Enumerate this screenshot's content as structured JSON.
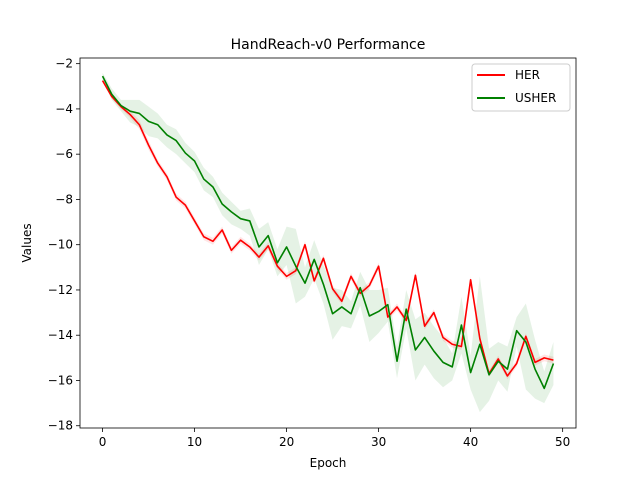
{
  "chart_data": {
    "type": "line",
    "title": "HandReach-v0 Performance",
    "xlabel": "Epoch",
    "ylabel": "Values",
    "xlim": [
      -2.45,
      51.45
    ],
    "ylim": [
      -18.1,
      -1.75
    ],
    "xticks": [
      0,
      10,
      20,
      30,
      40,
      50
    ],
    "yticks": [
      -18,
      -16,
      -14,
      -12,
      -10,
      -8,
      -6,
      -4,
      -2
    ],
    "grid": false,
    "legend_position": "top-right",
    "x": [
      0,
      1,
      2,
      3,
      4,
      5,
      6,
      7,
      8,
      9,
      10,
      11,
      12,
      13,
      14,
      15,
      16,
      17,
      18,
      19,
      20,
      21,
      22,
      23,
      24,
      25,
      26,
      27,
      28,
      29,
      30,
      31,
      32,
      33,
      34,
      35,
      36,
      37,
      38,
      39,
      40,
      41,
      42,
      43,
      44,
      45,
      46,
      47,
      48,
      49
    ],
    "series": [
      {
        "name": "HER",
        "color": "#ff0000",
        "values": [
          -2.75,
          -3.45,
          -3.9,
          -4.25,
          -4.7,
          -5.6,
          -6.4,
          -7.0,
          -7.9,
          -8.25,
          -8.95,
          -9.65,
          -9.85,
          -9.35,
          -10.25,
          -9.8,
          -10.1,
          -10.55,
          -10.05,
          -10.95,
          -11.4,
          -11.15,
          -10.0,
          -11.6,
          -10.6,
          -11.95,
          -12.5,
          -11.4,
          -12.15,
          -11.8,
          -10.95,
          -13.2,
          -12.75,
          -13.35,
          -11.35,
          -13.6,
          -13.0,
          -14.1,
          -14.4,
          -14.5,
          -11.55,
          -14.15,
          -15.7,
          -15.05,
          -15.8,
          -15.25,
          -14.05,
          -15.2,
          -15.0,
          -15.1
        ]
      },
      {
        "name": "USHER",
        "color": "#008000",
        "values": [
          -2.55,
          -3.35,
          -3.85,
          -4.1,
          -4.2,
          -4.55,
          -4.7,
          -5.15,
          -5.4,
          -5.95,
          -6.3,
          -7.1,
          -7.45,
          -8.2,
          -8.55,
          -8.85,
          -8.95,
          -10.1,
          -9.6,
          -10.8,
          -10.1,
          -10.95,
          -11.7,
          -10.65,
          -11.75,
          -13.05,
          -12.75,
          -13.05,
          -11.9,
          -13.15,
          -12.95,
          -12.65,
          -15.15,
          -12.85,
          -14.65,
          -14.1,
          -14.7,
          -15.2,
          -15.4,
          -13.55,
          -15.65,
          -14.4,
          -15.75,
          -15.15,
          -15.5,
          -13.8,
          -14.3,
          -15.5,
          -16.35,
          -15.25
        ]
      }
    ],
    "bands": [
      {
        "series": "HER",
        "color": "#ff0000",
        "lower": [
          -2.8,
          -3.55,
          -4.0,
          -4.4,
          -4.9,
          -5.8,
          -6.55,
          -7.15,
          -8.05,
          -8.4,
          -9.1,
          -9.8,
          -10.0,
          -9.5,
          -10.4,
          -9.95,
          -10.25,
          -10.7,
          -10.2,
          -11.1,
          -11.55,
          -11.3,
          -10.15,
          -11.75,
          -10.75,
          -12.1,
          -12.65,
          -11.55,
          -12.3,
          -11.95,
          -11.1,
          -13.35,
          -12.9,
          -13.5,
          -11.5,
          -13.75,
          -13.15,
          -14.25,
          -14.55,
          -14.65,
          -11.7,
          -14.3,
          -15.85,
          -15.2,
          -15.95,
          -15.4,
          -14.2,
          -15.35,
          -15.15,
          -15.25
        ],
        "upper": [
          -2.7,
          -3.35,
          -3.8,
          -4.1,
          -4.5,
          -5.4,
          -6.25,
          -6.85,
          -7.75,
          -8.1,
          -8.8,
          -9.5,
          -9.7,
          -9.2,
          -10.1,
          -9.65,
          -9.95,
          -10.4,
          -9.9,
          -10.8,
          -11.25,
          -11.0,
          -9.85,
          -11.45,
          -10.45,
          -11.8,
          -12.35,
          -11.25,
          -12.0,
          -11.65,
          -10.8,
          -13.05,
          -12.6,
          -13.2,
          -11.2,
          -13.45,
          -12.85,
          -13.95,
          -14.25,
          -14.35,
          -11.4,
          -14.0,
          -15.55,
          -14.9,
          -15.65,
          -15.1,
          -13.9,
          -15.05,
          -14.85,
          -14.95
        ]
      },
      {
        "series": "USHER",
        "color": "#008000",
        "lower": [
          -2.7,
          -3.6,
          -4.1,
          -4.6,
          -4.8,
          -5.2,
          -5.3,
          -5.7,
          -6.0,
          -6.4,
          -6.8,
          -7.6,
          -7.9,
          -8.7,
          -9.1,
          -9.3,
          -9.6,
          -10.9,
          -10.2,
          -11.4,
          -10.9,
          -12.6,
          -12.3,
          -11.5,
          -12.6,
          -14.2,
          -13.6,
          -13.7,
          -12.7,
          -14.3,
          -13.9,
          -13.4,
          -15.9,
          -13.7,
          -16.0,
          -15.3,
          -15.9,
          -16.3,
          -16.0,
          -14.8,
          -16.4,
          -17.4,
          -16.9,
          -16.0,
          -16.5,
          -14.5,
          -16.4,
          -16.8,
          -17.0,
          -16.2
        ],
        "upper": [
          -2.4,
          -3.1,
          -3.6,
          -3.6,
          -3.6,
          -3.9,
          -4.2,
          -4.7,
          -4.9,
          -5.5,
          -5.9,
          -6.6,
          -7.0,
          -7.7,
          -8.1,
          -8.5,
          -8.4,
          -9.3,
          -9.0,
          -10.2,
          -9.2,
          -9.3,
          -11.0,
          -9.8,
          -10.9,
          -11.9,
          -12.0,
          -12.5,
          -11.2,
          -12.0,
          -12.0,
          -11.9,
          -14.5,
          -12.0,
          -13.3,
          -13.0,
          -13.6,
          -14.1,
          -14.8,
          -12.3,
          -14.9,
          -11.4,
          -14.6,
          -14.3,
          -14.5,
          -13.2,
          -12.6,
          -14.2,
          -15.6,
          -14.3
        ]
      }
    ]
  }
}
